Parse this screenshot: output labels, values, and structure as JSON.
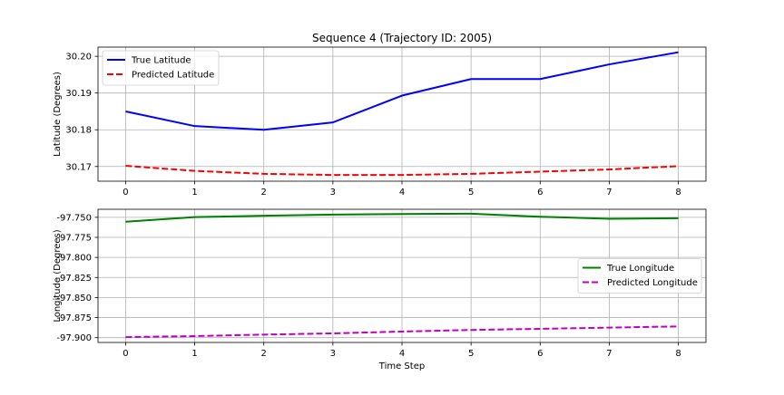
{
  "chart_data": [
    {
      "type": "line",
      "title": "Sequence 4 (Trajectory ID: 2005)",
      "xlabel": "",
      "ylabel": "Latitude (Degrees)",
      "x": [
        0,
        1,
        2,
        3,
        4,
        5,
        6,
        7,
        8
      ],
      "xticks": [
        "0",
        "1",
        "2",
        "3",
        "4",
        "5",
        "6",
        "7",
        "8"
      ],
      "xlim": [
        -0.4,
        8.4
      ],
      "ylim": [
        30.166,
        30.2025
      ],
      "yticks": [
        "30.17",
        "30.18",
        "30.19",
        "30.20"
      ],
      "ytick_values": [
        30.17,
        30.18,
        30.19,
        30.2
      ],
      "grid": true,
      "legend": "upper left",
      "series": [
        {
          "name": "True Latitude",
          "color": "#0000ff",
          "style": "solid",
          "values": [
            30.185,
            30.181,
            30.18,
            30.182,
            30.1893,
            30.1938,
            30.1938,
            30.1978,
            30.2011
          ]
        },
        {
          "name": "Predicted Latitude",
          "color": "#ff0000",
          "style": "dashed",
          "values": [
            30.1702,
            30.1688,
            30.168,
            30.1677,
            30.1677,
            30.168,
            30.1686,
            30.1692,
            30.1701
          ]
        }
      ]
    },
    {
      "type": "line",
      "title": "",
      "xlabel": "Time Step",
      "ylabel": "Longitude (Degrees)",
      "x": [
        0,
        1,
        2,
        3,
        4,
        5,
        6,
        7,
        8
      ],
      "xticks": [
        "0",
        "1",
        "2",
        "3",
        "4",
        "5",
        "6",
        "7",
        "8"
      ],
      "xlim": [
        -0.4,
        8.4
      ],
      "ylim": [
        -97.906,
        -97.74
      ],
      "yticks": [
        "-97.750",
        "-97.775",
        "-97.800",
        "-97.825",
        "-97.850",
        "-97.875",
        "-97.900"
      ],
      "ytick_values": [
        -97.75,
        -97.775,
        -97.8,
        -97.825,
        -97.85,
        -97.875,
        -97.9
      ],
      "grid": true,
      "legend": "center right",
      "series": [
        {
          "name": "True Longitude",
          "color": "#008000",
          "style": "solid",
          "values": [
            -97.7555,
            -97.7498,
            -97.7481,
            -97.7466,
            -97.7459,
            -97.7455,
            -97.7493,
            -97.7518,
            -97.7512
          ]
        },
        {
          "name": "Predicted Longitude",
          "color": "#bf00bf",
          "style": "dashed",
          "values": [
            -97.8993,
            -97.8981,
            -97.8962,
            -97.8947,
            -97.8924,
            -97.8904,
            -97.889,
            -97.8875,
            -97.886
          ]
        }
      ]
    }
  ]
}
